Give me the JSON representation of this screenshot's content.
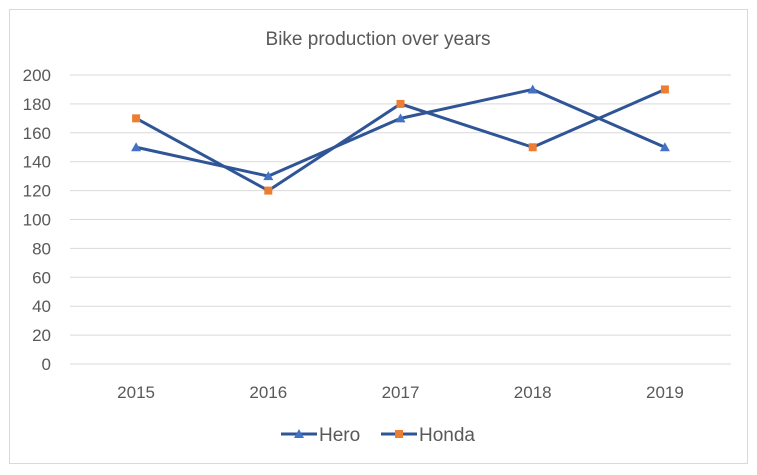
{
  "chart_data": {
    "type": "line",
    "title": "Bike production over years",
    "xlabel": "",
    "ylabel": "",
    "categories": [
      "2015",
      "2016",
      "2017",
      "2018",
      "2019"
    ],
    "ylim": [
      0,
      200
    ],
    "yticks": [
      0,
      20,
      40,
      60,
      80,
      100,
      120,
      140,
      160,
      180,
      200
    ],
    "grid": true,
    "legend_position": "bottom",
    "series": [
      {
        "name": "Hero",
        "values": [
          150,
          130,
          170,
          190,
          150
        ],
        "color": "#2f5597",
        "marker": "triangle",
        "marker_color": "#4472c4"
      },
      {
        "name": "Honda",
        "values": [
          170,
          120,
          180,
          150,
          190
        ],
        "color": "#2f5597",
        "marker": "square",
        "marker_color": "#ed7d31"
      }
    ]
  }
}
